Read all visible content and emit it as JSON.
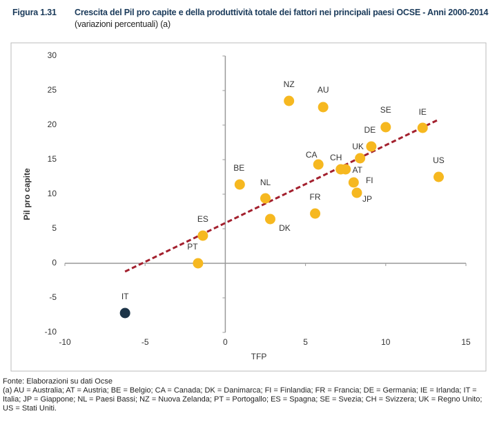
{
  "chart_data": {
    "type": "scatter",
    "figure": "Figura 1.31",
    "title": "Crescita del Pil pro capite e della produttività totale dei fattori nei principali paesi OCSE - Anni 2000-2014",
    "subtitle": "(variazioni percentuali) (a)",
    "xlabel": "TFP",
    "ylabel": "Pil pro capite",
    "labels": [
      "NZ",
      "AU",
      "SE",
      "IE",
      "DE",
      "UK",
      "CA",
      "CH",
      "AT",
      "US",
      "FI",
      "JP",
      "BE",
      "NL",
      "ES",
      "FR",
      "DK",
      "PT",
      "IT"
    ],
    "x": [
      3.97,
      6.1,
      10.0,
      12.3,
      9.1,
      8.4,
      5.8,
      7.2,
      7.5,
      13.3,
      8.0,
      8.2,
      0.9,
      2.5,
      -1.4,
      5.6,
      2.8,
      -1.7,
      -6.25
    ],
    "y": [
      23.5,
      22.6,
      19.7,
      19.6,
      16.9,
      15.2,
      14.3,
      13.6,
      13.6,
      12.5,
      11.7,
      10.2,
      11.4,
      9.4,
      4.0,
      7.2,
      6.4,
      0.0,
      -7.2
    ],
    "colors": [
      "#f6b820",
      "#f6b820",
      "#f6b820",
      "#f6b820",
      "#f6b820",
      "#f6b820",
      "#f6b820",
      "#f6b820",
      "#f6b820",
      "#f6b820",
      "#f6b820",
      "#f6b820",
      "#f6b820",
      "#f6b820",
      "#f6b820",
      "#f6b820",
      "#f6b820",
      "#f6b820",
      "#1c3448"
    ],
    "trend_line": {
      "x": [
        -6.25,
        13.3
      ],
      "y": [
        -1.2,
        20.8
      ],
      "color": "#a3202e"
    },
    "xlim": [
      -10,
      15
    ],
    "xticks": [
      -10,
      -5,
      0,
      5,
      10,
      15
    ],
    "ylim": [
      -10,
      30
    ],
    "yticks": [
      -10,
      -5,
      0,
      5,
      10,
      15,
      20,
      25,
      30
    ],
    "source": "Fonte: Elaborazioni su dati Ocse",
    "note": "(a) AU = Australia; AT = Austria; BE = Belgio; CA = Canada; DK = Danimarca; FI = Finlandia; FR = Francia; DE = Germania; IE = Irlanda; IT = Italia; JP = Giappone; NL = Paesi Bassi; NZ = Nuova Zelanda; PT = Portogallo; ES = Spagna; SE = Svezia; CH = Svizzera; UK = Regno Unito; US = Stati Uniti."
  }
}
